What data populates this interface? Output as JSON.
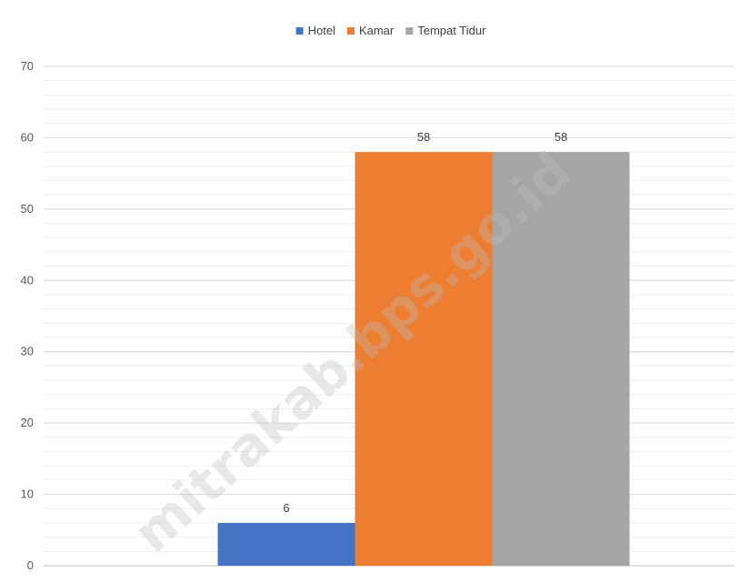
{
  "chart_data": {
    "type": "bar",
    "categories": [
      ""
    ],
    "series": [
      {
        "name": "Hotel",
        "values": [
          6
        ],
        "color": "#4472c4"
      },
      {
        "name": "Kamar",
        "values": [
          58
        ],
        "color": "#ed7d31"
      },
      {
        "name": "Tempat Tidur",
        "values": [
          58
        ],
        "color": "#a5a5a5"
      }
    ],
    "data_labels": [
      "6",
      "58",
      "58"
    ],
    "title": "",
    "xlabel": "",
    "ylabel": "",
    "ylim": [
      0,
      70
    ],
    "yticks": [
      0,
      10,
      20,
      30,
      40,
      50,
      60,
      70
    ],
    "grid": true,
    "legend_position": "top"
  },
  "watermark": "mitrakab.bps.go.id"
}
